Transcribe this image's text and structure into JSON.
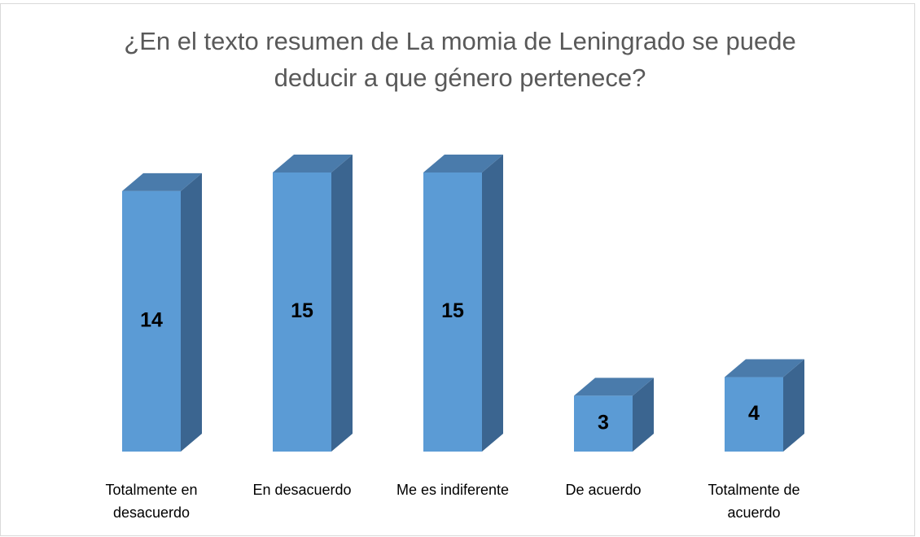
{
  "chart_data": {
    "type": "bar3d",
    "title": "¿En el texto resumen de La momia de Leningrado se puede deducir a que género pertenece?",
    "categories": [
      "Totalmente en desacuerdo",
      "En desacuerdo",
      "Me es indiferente",
      "De acuerdo",
      "Totalmente de acuerdo"
    ],
    "values": [
      14,
      15,
      15,
      3,
      4
    ],
    "color": "#5b9bd5"
  }
}
